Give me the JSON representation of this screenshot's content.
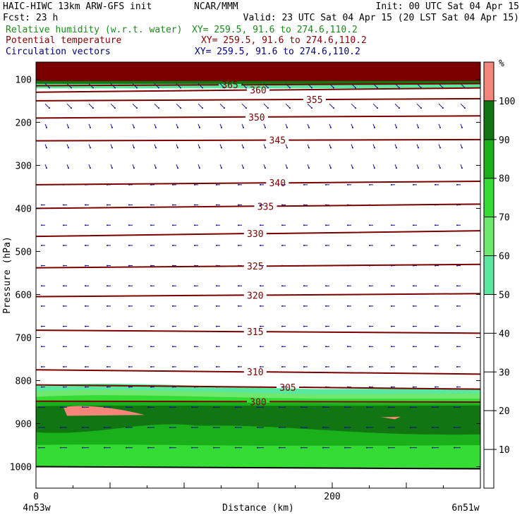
{
  "header": {
    "model": "HAIC-HIWC 13km ARW-GFS init",
    "org": "NCAR/MMM",
    "init": "Init: 00 UTC Sat 04 Apr 15",
    "fcst": "Fcst:   23 h",
    "valid": "Valid: 23 UTC Sat 04 Apr 15 (20 LST Sat 04 Apr 15)",
    "fields": [
      {
        "label": "Relative humidity (w.r.t. water)",
        "xy": "XY= 259.5, 91.6 to 274.6,110.2",
        "color": "#1a8a1a"
      },
      {
        "label": "Potential temperature",
        "xy": "XY= 259.5, 91.6 to 274.6,110.2",
        "color": "#8b0000"
      },
      {
        "label": "Circulation vectors",
        "xy": "XY= 259.5, 91.6 to 274.6,110.2",
        "color": "#000080"
      }
    ]
  },
  "chart_data": {
    "type": "cross-section",
    "xlabel": "Distance (km)",
    "ylabel": "Pressure (hPa)",
    "xlim": [
      0,
      300
    ],
    "ylim": [
      1050,
      60
    ],
    "x_ticks": [
      0,
      200
    ],
    "x_endpoints": [
      "4n53w",
      "6n51w"
    ],
    "y_ticks": [
      100,
      200,
      300,
      400,
      500,
      600,
      700,
      800,
      900,
      1000
    ],
    "rh_colorbar": {
      "unit": "%",
      "levels": [
        10,
        20,
        30,
        40,
        50,
        60,
        70,
        80,
        90,
        100
      ],
      "colors": [
        {
          "from": 50,
          "to": 60,
          "color": "#5ae8a0"
        },
        {
          "from": 60,
          "to": 70,
          "color": "#6ee86e"
        },
        {
          "from": 70,
          "to": 80,
          "color": "#34dc34"
        },
        {
          "from": 80,
          "to": 90,
          "color": "#1ab01a"
        },
        {
          "from": 90,
          "to": 100,
          "color": "#117511"
        },
        {
          "from": 100,
          "to": 110,
          "color": "#f5857a"
        }
      ]
    },
    "theta_contours": [
      {
        "label": "300",
        "p_left": 848,
        "p_right": 850,
        "label_x": 150
      },
      {
        "label": "305",
        "p_left": 810,
        "p_right": 820,
        "label_x": 170
      },
      {
        "label": "310",
        "p_left": 775,
        "p_right": 785,
        "label_x": 148
      },
      {
        "label": "315",
        "p_left": 683,
        "p_right": 690,
        "label_x": 148
      },
      {
        "label": "320",
        "p_left": 605,
        "p_right": 598,
        "label_x": 148
      },
      {
        "label": "325",
        "p_left": 538,
        "p_right": 530,
        "label_x": 148
      },
      {
        "label": "330",
        "p_left": 465,
        "p_right": 452,
        "label_x": 148
      },
      {
        "label": "335",
        "p_left": 400,
        "p_right": 390,
        "label_x": 155
      },
      {
        "label": "340",
        "p_left": 345,
        "p_right": 337,
        "label_x": 163
      },
      {
        "label": "345",
        "p_left": 243,
        "p_right": 240,
        "label_x": 163
      },
      {
        "label": "350",
        "p_left": 190,
        "p_right": 185,
        "label_x": 149
      },
      {
        "label": "355",
        "p_left": 150,
        "p_right": 145,
        "label_x": 188
      },
      {
        "label": "360",
        "p_left": 130,
        "p_right": 120,
        "label_x": 150
      },
      {
        "label": "365",
        "p_left": 115,
        "p_right": 110,
        "label_x": 131
      }
    ]
  }
}
